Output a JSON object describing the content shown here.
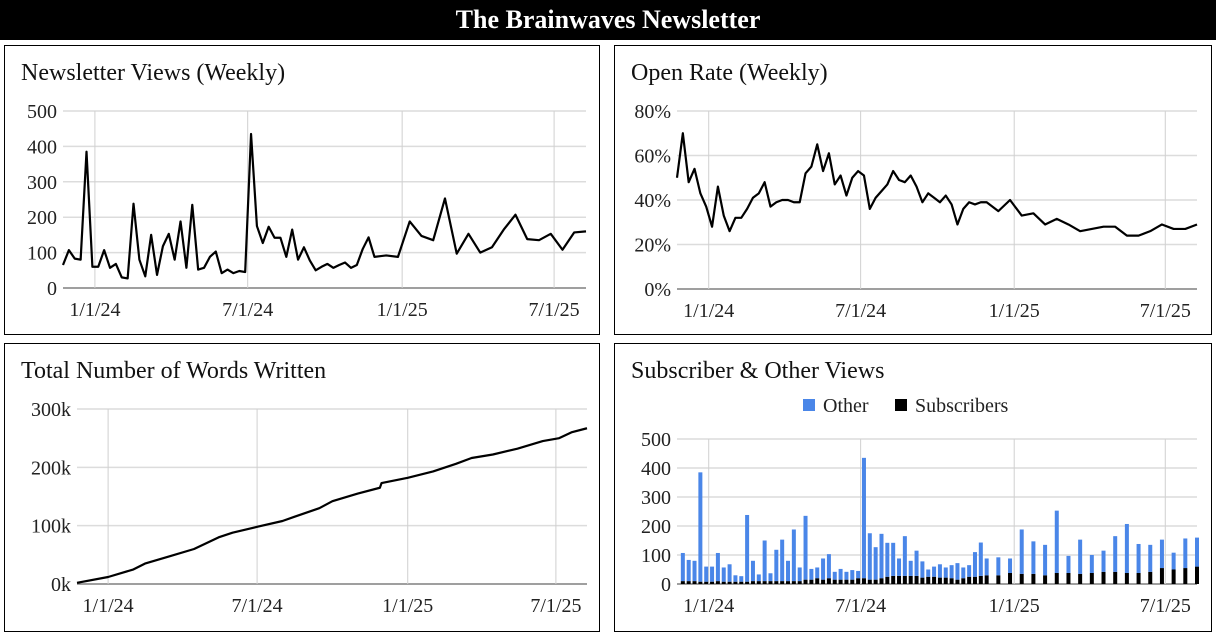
{
  "header": {
    "title": "The Brainwaves Newsletter"
  },
  "dates": [
    "2023-11-24",
    "2023-12-01",
    "2023-12-08",
    "2023-12-15",
    "2023-12-22",
    "2023-12-29",
    "2024-01-05",
    "2024-01-12",
    "2024-01-19",
    "2024-01-26",
    "2024-02-02",
    "2024-02-09",
    "2024-02-16",
    "2024-02-23",
    "2024-03-01",
    "2024-03-08",
    "2024-03-15",
    "2024-03-22",
    "2024-03-29",
    "2024-04-05",
    "2024-04-12",
    "2024-04-19",
    "2024-04-26",
    "2024-05-03",
    "2024-05-10",
    "2024-05-17",
    "2024-05-24",
    "2024-05-31",
    "2024-06-07",
    "2024-06-14",
    "2024-06-21",
    "2024-06-28",
    "2024-07-05",
    "2024-07-12",
    "2024-07-19",
    "2024-07-26",
    "2024-08-02",
    "2024-08-09",
    "2024-08-16",
    "2024-08-23",
    "2024-08-30",
    "2024-09-06",
    "2024-09-13",
    "2024-09-20",
    "2024-09-27",
    "2024-10-04",
    "2024-10-11",
    "2024-10-18",
    "2024-10-25",
    "2024-11-01",
    "2024-11-08",
    "2024-11-15",
    "2024-11-22",
    "2024-11-29",
    "2024-12-13",
    "2024-12-27",
    "2025-01-10",
    "2025-01-24",
    "2025-02-07",
    "2025-02-21",
    "2025-03-07",
    "2025-03-21",
    "2025-04-04",
    "2025-04-18",
    "2025-05-02",
    "2025-05-16",
    "2025-05-30",
    "2025-06-13",
    "2025-06-27",
    "2025-07-11",
    "2025-07-25",
    "2025-08-08"
  ],
  "chart_data": [
    {
      "id": "views",
      "type": "line",
      "title": "Newsletter Views (Weekly)",
      "x_ticks": [
        "1/1/24",
        "7/1/24",
        "1/1/25",
        "7/1/25"
      ],
      "x_tick_dates": [
        "2024-01-01",
        "2024-07-01",
        "2025-01-01",
        "2025-07-01"
      ],
      "y_ticks": [
        "0",
        "100",
        "200",
        "300",
        "400",
        "500"
      ],
      "ylim": [
        0,
        500
      ],
      "grid": true,
      "color": "#000000",
      "values": [
        65,
        107,
        83,
        80,
        385,
        60,
        60,
        107,
        57,
        68,
        30,
        27,
        238,
        80,
        33,
        150,
        37,
        118,
        153,
        80,
        188,
        57,
        235,
        52,
        57,
        88,
        103,
        42,
        52,
        42,
        48,
        45,
        435,
        175,
        127,
        173,
        142,
        142,
        88,
        165,
        80,
        115,
        78,
        50,
        60,
        68,
        57,
        65,
        72,
        57,
        65,
        110,
        143,
        88,
        92,
        88,
        188,
        147,
        135,
        253,
        97,
        153,
        100,
        115,
        165,
        207,
        138,
        135,
        153,
        108,
        157,
        160
      ]
    },
    {
      "id": "open",
      "type": "line",
      "title": "Open Rate (Weekly)",
      "x_ticks": [
        "1/1/24",
        "7/1/24",
        "1/1/25",
        "7/1/25"
      ],
      "x_tick_dates": [
        "2024-01-01",
        "2024-07-01",
        "2025-01-01",
        "2025-07-01"
      ],
      "y_ticks": [
        "0%",
        "20%",
        "40%",
        "60%",
        "80%"
      ],
      "ylim": [
        0,
        80
      ],
      "unit": "%",
      "grid": true,
      "color": "#000000",
      "values": [
        50,
        70,
        48,
        54,
        43,
        37,
        28,
        46,
        33,
        26,
        32,
        32,
        36,
        41,
        43,
        48,
        37,
        39,
        40,
        40,
        39,
        39,
        52,
        55,
        65,
        53,
        61,
        47,
        51,
        42,
        50,
        53,
        51,
        36,
        41,
        44,
        47,
        53,
        49,
        48,
        51,
        46,
        39,
        43,
        41,
        39,
        42,
        38,
        29,
        36,
        39,
        38,
        39,
        39,
        35,
        40,
        33,
        34,
        29,
        31.5,
        29,
        26,
        27,
        28,
        28,
        24,
        24,
        26,
        29,
        27,
        27,
        29
      ]
    },
    {
      "id": "words",
      "type": "line",
      "title": "Total Number of Words Written",
      "x_ticks": [
        "1/1/24",
        "7/1/24",
        "1/1/25",
        "7/1/25"
      ],
      "x_tick_dates": [
        "2024-01-01",
        "2024-07-01",
        "2025-01-01",
        "2025-07-01"
      ],
      "y_ticks": [
        "0k",
        "100k",
        "200k",
        "300k"
      ],
      "ylim": [
        0,
        300000
      ],
      "grid": true,
      "color": "#000000",
      "points": [
        [
          "2023-11-24",
          2000
        ],
        [
          "2024-01-01",
          12000
        ],
        [
          "2024-02-01",
          25000
        ],
        [
          "2024-02-15",
          35000
        ],
        [
          "2024-03-15",
          47000
        ],
        [
          "2024-04-15",
          60000
        ],
        [
          "2024-05-15",
          80000
        ],
        [
          "2024-06-01",
          88000
        ],
        [
          "2024-07-01",
          98000
        ],
        [
          "2024-08-01",
          108000
        ],
        [
          "2024-08-15",
          115000
        ],
        [
          "2024-09-15",
          130000
        ],
        [
          "2024-10-01",
          142000
        ],
        [
          "2024-11-01",
          155000
        ],
        [
          "2024-11-28",
          165000
        ],
        [
          "2024-11-30",
          173000
        ],
        [
          "2025-01-01",
          182000
        ],
        [
          "2025-02-01",
          193000
        ],
        [
          "2025-03-01",
          206000
        ],
        [
          "2025-03-20",
          216000
        ],
        [
          "2025-04-15",
          222000
        ],
        [
          "2025-05-15",
          232000
        ],
        [
          "2025-06-15",
          245000
        ],
        [
          "2025-07-05",
          250000
        ],
        [
          "2025-07-20",
          260000
        ],
        [
          "2025-08-08",
          267000
        ]
      ]
    },
    {
      "id": "subs",
      "type": "bar",
      "stacked": true,
      "title": "Subscriber & Other Views",
      "x_ticks": [
        "1/1/24",
        "7/1/24",
        "1/1/25",
        "7/1/25"
      ],
      "x_tick_dates": [
        "2024-01-01",
        "2024-07-01",
        "2025-01-01",
        "2025-07-01"
      ],
      "y_ticks": [
        "0",
        "100",
        "200",
        "300",
        "400",
        "500"
      ],
      "ylim": [
        0,
        500
      ],
      "grid": true,
      "legend_position": "top",
      "series": [
        {
          "name": "Subscribers",
          "color": "#000000",
          "values": [
            null,
            10,
            10,
            10,
            8,
            8,
            8,
            10,
            8,
            8,
            8,
            8,
            8,
            10,
            10,
            10,
            10,
            10,
            10,
            10,
            10,
            10,
            15,
            15,
            20,
            15,
            20,
            15,
            15,
            15,
            15,
            20,
            20,
            15,
            15,
            20,
            25,
            28,
            28,
            28,
            28,
            28,
            22,
            25,
            25,
            22,
            22,
            20,
            15,
            20,
            25,
            25,
            28,
            30,
            30,
            38,
            35,
            35,
            30,
            38,
            38,
            35,
            38,
            42,
            42,
            38,
            38,
            42,
            55,
            50,
            55,
            60
          ]
        },
        {
          "name": "Other",
          "color": "#4a86e8",
          "values": [
            null,
            97,
            73,
            70,
            377,
            52,
            52,
            97,
            49,
            60,
            22,
            19,
            230,
            70,
            23,
            140,
            27,
            108,
            143,
            70,
            178,
            47,
            220,
            37,
            37,
            73,
            83,
            27,
            37,
            27,
            33,
            25,
            415,
            160,
            112,
            153,
            117,
            114,
            60,
            137,
            52,
            87,
            56,
            25,
            35,
            46,
            35,
            45,
            57,
            37,
            40,
            85,
            115,
            58,
            62,
            50,
            153,
            112,
            105,
            215,
            59,
            118,
            62,
            73,
            123,
            169,
            100,
            93,
            98,
            58,
            102,
            100
          ]
        }
      ]
    }
  ]
}
